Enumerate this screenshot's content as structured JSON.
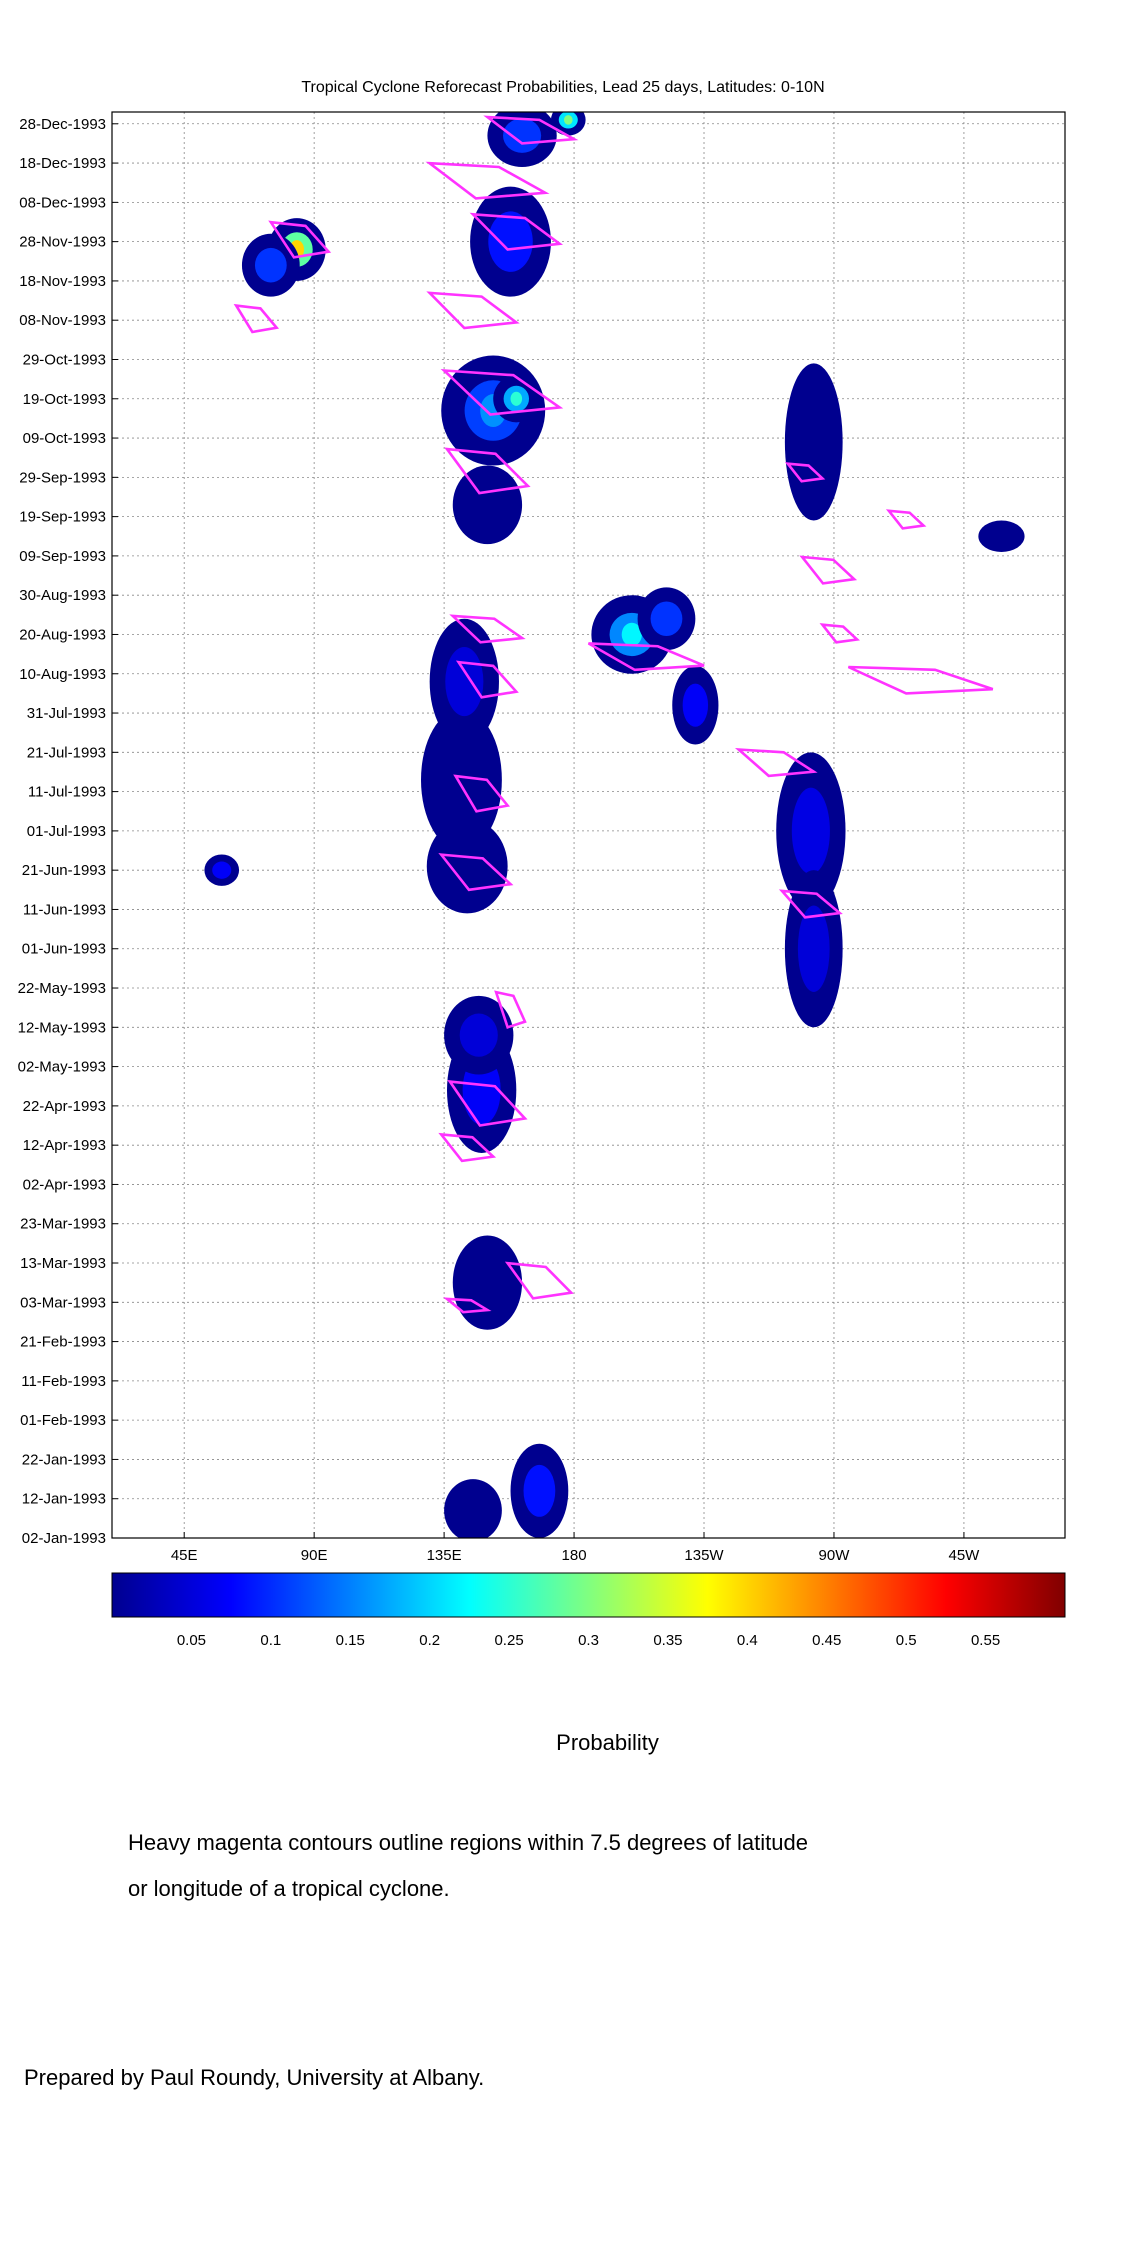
{
  "chart_data": {
    "type": "heatmap",
    "title": "Tropical Cyclone Reforecast Probabilities, Lead 25 days, Latitudes: 0-10N",
    "x_tick_labels": [
      "45E",
      "90E",
      "135E",
      "180",
      "135W",
      "90W",
      "45W"
    ],
    "x_ticks_deg_east": [
      45,
      90,
      135,
      180,
      225,
      270,
      315
    ],
    "xlim_deg_east": [
      20,
      350
    ],
    "y_tick_labels": [
      "28-Dec-1993",
      "18-Dec-1993",
      "08-Dec-1993",
      "28-Nov-1993",
      "18-Nov-1993",
      "08-Nov-1993",
      "29-Oct-1993",
      "19-Oct-1993",
      "09-Oct-1993",
      "29-Sep-1993",
      "19-Sep-1993",
      "09-Sep-1993",
      "30-Aug-1993",
      "20-Aug-1993",
      "10-Aug-1993",
      "31-Jul-1993",
      "21-Jul-1993",
      "11-Jul-1993",
      "01-Jul-1993",
      "21-Jun-1993",
      "11-Jun-1993",
      "01-Jun-1993",
      "22-May-1993",
      "12-May-1993",
      "02-May-1993",
      "22-Apr-1993",
      "12-Apr-1993",
      "02-Apr-1993",
      "23-Mar-1993",
      "13-Mar-1993",
      "03-Mar-1993",
      "21-Feb-1993",
      "11-Feb-1993",
      "01-Feb-1993",
      "22-Jan-1993",
      "12-Jan-1993",
      "02-Jan-1993"
    ],
    "ylim": [
      "02-Jan-1993",
      "31-Dec-1993"
    ],
    "grid": true,
    "colorbar": {
      "label": "Probability",
      "tick_labels": [
        "0.05",
        "0.1",
        "0.15",
        "0.2",
        "0.25",
        "0.3",
        "0.35",
        "0.4",
        "0.45",
        "0.5",
        "0.55"
      ],
      "range": [
        0,
        0.6
      ],
      "colors": [
        "#00008f",
        "#0000ff",
        "#0080ff",
        "#00ffff",
        "#80ff80",
        "#ffff00",
        "#ff8000",
        "#ff0000",
        "#800000"
      ]
    },
    "probability_blobs": [
      {
        "lon": 145,
        "date": "1993-01-09",
        "dlon": 10,
        "days": 8,
        "p": 0.06
      },
      {
        "lon": 168,
        "date": "1993-01-14",
        "dlon": 10,
        "days": 12,
        "p": 0.12
      },
      {
        "lon": 150,
        "date": "1993-03-08",
        "dlon": 12,
        "days": 12,
        "p": 0.05
      },
      {
        "lon": 148,
        "date": "1993-04-26",
        "dlon": 12,
        "days": 16,
        "p": 0.1
      },
      {
        "lon": 147,
        "date": "1993-05-10",
        "dlon": 12,
        "days": 10,
        "p": 0.07
      },
      {
        "lon": 143,
        "date": "1993-06-22",
        "dlon": 14,
        "days": 12,
        "p": 0.06
      },
      {
        "lon": 141,
        "date": "1993-07-14",
        "dlon": 14,
        "days": 18,
        "p": 0.06
      },
      {
        "lon": 142,
        "date": "1993-08-08",
        "dlon": 12,
        "days": 16,
        "p": 0.07
      },
      {
        "lon": 200,
        "date": "1993-08-20",
        "dlon": 14,
        "days": 10,
        "p": 0.22
      },
      {
        "lon": 212,
        "date": "1993-08-24",
        "dlon": 10,
        "days": 8,
        "p": 0.15
      },
      {
        "lon": 222,
        "date": "1993-08-02",
        "dlon": 8,
        "days": 10,
        "p": 0.1
      },
      {
        "lon": 262,
        "date": "1993-07-01",
        "dlon": 12,
        "days": 20,
        "p": 0.08
      },
      {
        "lon": 263,
        "date": "1993-06-01",
        "dlon": 10,
        "days": 20,
        "p": 0.07
      },
      {
        "lon": 263,
        "date": "1993-10-08",
        "dlon": 10,
        "days": 20,
        "p": 0.06
      },
      {
        "lon": 152,
        "date": "1993-10-16",
        "dlon": 18,
        "days": 14,
        "p": 0.16
      },
      {
        "lon": 160,
        "date": "1993-10-19",
        "dlon": 8,
        "days": 6,
        "p": 0.25
      },
      {
        "lon": 150,
        "date": "1993-09-22",
        "dlon": 12,
        "days": 10,
        "p": 0.06
      },
      {
        "lon": 84,
        "date": "1993-11-26",
        "dlon": 10,
        "days": 8,
        "p": 0.4
      },
      {
        "lon": 75,
        "date": "1993-11-22",
        "dlon": 10,
        "days": 8,
        "p": 0.15
      },
      {
        "lon": 158,
        "date": "1993-11-28",
        "dlon": 14,
        "days": 14,
        "p": 0.12
      },
      {
        "lon": 162,
        "date": "1993-12-25",
        "dlon": 12,
        "days": 8,
        "p": 0.15
      },
      {
        "lon": 178,
        "date": "1993-12-29",
        "dlon": 6,
        "days": 4,
        "p": 0.3
      },
      {
        "lon": 58,
        "date": "1993-06-21",
        "dlon": 6,
        "days": 4,
        "p": 0.1
      },
      {
        "lon": 328,
        "date": "1993-09-14",
        "dlon": 8,
        "days": 4,
        "p": 0.05
      }
    ],
    "cyclone_contours": [
      {
        "lon": 150,
        "date": "1993-04-22",
        "dlon": 26,
        "days": 10
      },
      {
        "lon": 143,
        "date": "1993-04-11",
        "dlon": 18,
        "days": 6
      },
      {
        "lon": 168,
        "date": "1993-03-08",
        "dlon": 22,
        "days": 8
      },
      {
        "lon": 143,
        "date": "1993-03-02",
        "dlon": 14,
        "days": 3
      },
      {
        "lon": 158,
        "date": "1993-05-16",
        "dlon": 10,
        "days": 8
      },
      {
        "lon": 146,
        "date": "1993-06-20",
        "dlon": 24,
        "days": 8
      },
      {
        "lon": 148,
        "date": "1993-07-10",
        "dlon": 18,
        "days": 8
      },
      {
        "lon": 150,
        "date": "1993-08-08",
        "dlon": 20,
        "days": 8
      },
      {
        "lon": 150,
        "date": "1993-08-21",
        "dlon": 24,
        "days": 6
      },
      {
        "lon": 205,
        "date": "1993-08-14",
        "dlon": 40,
        "days": 6
      },
      {
        "lon": 250,
        "date": "1993-07-18",
        "dlon": 26,
        "days": 6
      },
      {
        "lon": 300,
        "date": "1993-08-08",
        "dlon": 50,
        "days": 6
      },
      {
        "lon": 262,
        "date": "1993-06-12",
        "dlon": 20,
        "days": 6
      },
      {
        "lon": 268,
        "date": "1993-09-05",
        "dlon": 18,
        "days": 6
      },
      {
        "lon": 272,
        "date": "1993-08-20",
        "dlon": 12,
        "days": 4
      },
      {
        "lon": 260,
        "date": "1993-09-30",
        "dlon": 12,
        "days": 4
      },
      {
        "lon": 150,
        "date": "1993-09-30",
        "dlon": 28,
        "days": 10
      },
      {
        "lon": 155,
        "date": "1993-10-20",
        "dlon": 40,
        "days": 10
      },
      {
        "lon": 145,
        "date": "1993-11-10",
        "dlon": 30,
        "days": 8
      },
      {
        "lon": 160,
        "date": "1993-11-30",
        "dlon": 30,
        "days": 8
      },
      {
        "lon": 150,
        "date": "1993-12-13",
        "dlon": 40,
        "days": 8
      },
      {
        "lon": 165,
        "date": "1993-12-26",
        "dlon": 30,
        "days": 6
      },
      {
        "lon": 85,
        "date": "1993-11-28",
        "dlon": 20,
        "days": 8
      },
      {
        "lon": 70,
        "date": "1993-11-08",
        "dlon": 14,
        "days": 6
      },
      {
        "lon": 295,
        "date": "1993-09-18",
        "dlon": 12,
        "days": 4
      }
    ]
  },
  "colorbar_label": "Probability",
  "note_lines": [
    "Heavy magenta contours outline regions within 7.5 degrees of latitude",
    "or longitude of a tropical cyclone."
  ],
  "credit": "Prepared by Paul Roundy, University at Albany."
}
